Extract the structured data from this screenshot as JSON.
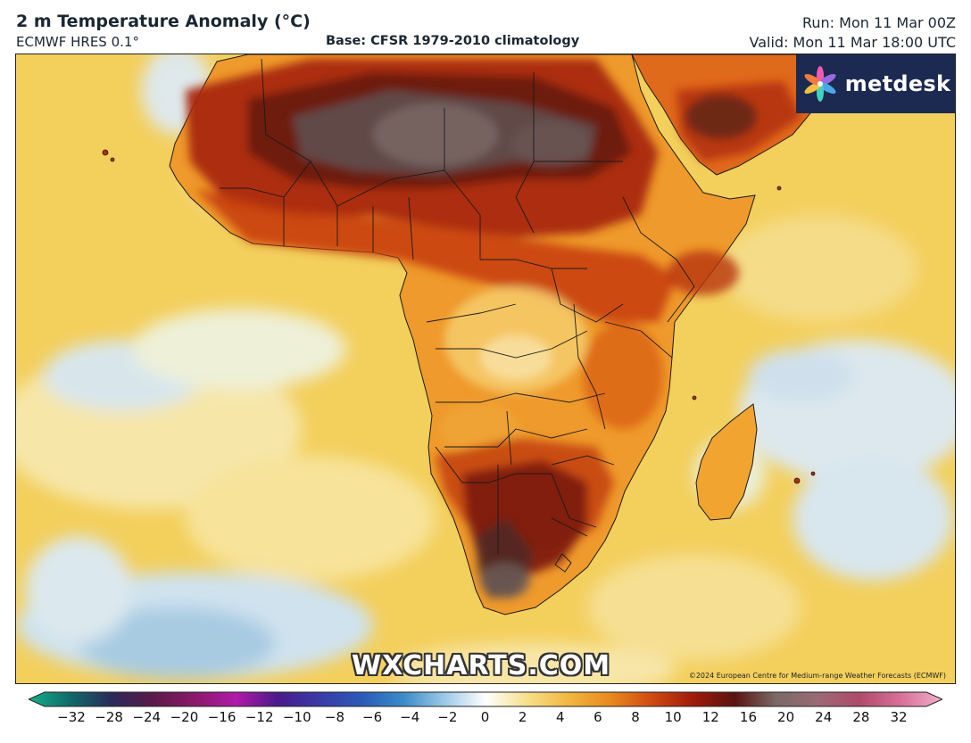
{
  "header": {
    "title": "2 m Temperature Anomaly (°C)",
    "model": "ECMWF HRES 0.1°",
    "base": "Base: CFSR 1979-2010 climatology",
    "run": "Run: Mon 11 Mar 00Z",
    "valid": "Valid: Mon 11 Mar 18:00 UTC"
  },
  "logo": {
    "text": "metdesk",
    "icon": "metdesk-flower-icon"
  },
  "watermark": "WXCHARTS.COM",
  "copyright": "©2024 European Centre for Medium-range Weather Forecasts (ECMWF)",
  "colorbar": {
    "ticks": [
      "−32",
      "−28",
      "−24",
      "−20",
      "−16",
      "−12",
      "−10",
      "−8",
      "−6",
      "−4",
      "−2",
      "0",
      "2",
      "4",
      "6",
      "8",
      "10",
      "12",
      "16",
      "20",
      "24",
      "28",
      "32"
    ],
    "colors": [
      "#16b08c",
      "#0f6a6a",
      "#2a2a5a",
      "#5a1a4a",
      "#8a1a6a",
      "#b01aa8",
      "#4a1a8a",
      "#3a3aa8",
      "#2a5ab8",
      "#3a8ac8",
      "#9cc8e6",
      "#ffffff",
      "#f7df8a",
      "#f2b640",
      "#e88a1e",
      "#d04a12",
      "#a01a0a",
      "#5a1410",
      "#7a6a66",
      "#9a6a76",
      "#b04a6a",
      "#d8709a",
      "#f0b0c8"
    ]
  },
  "map": {
    "region": "Africa",
    "projection_theme": "temperature-anomaly"
  }
}
